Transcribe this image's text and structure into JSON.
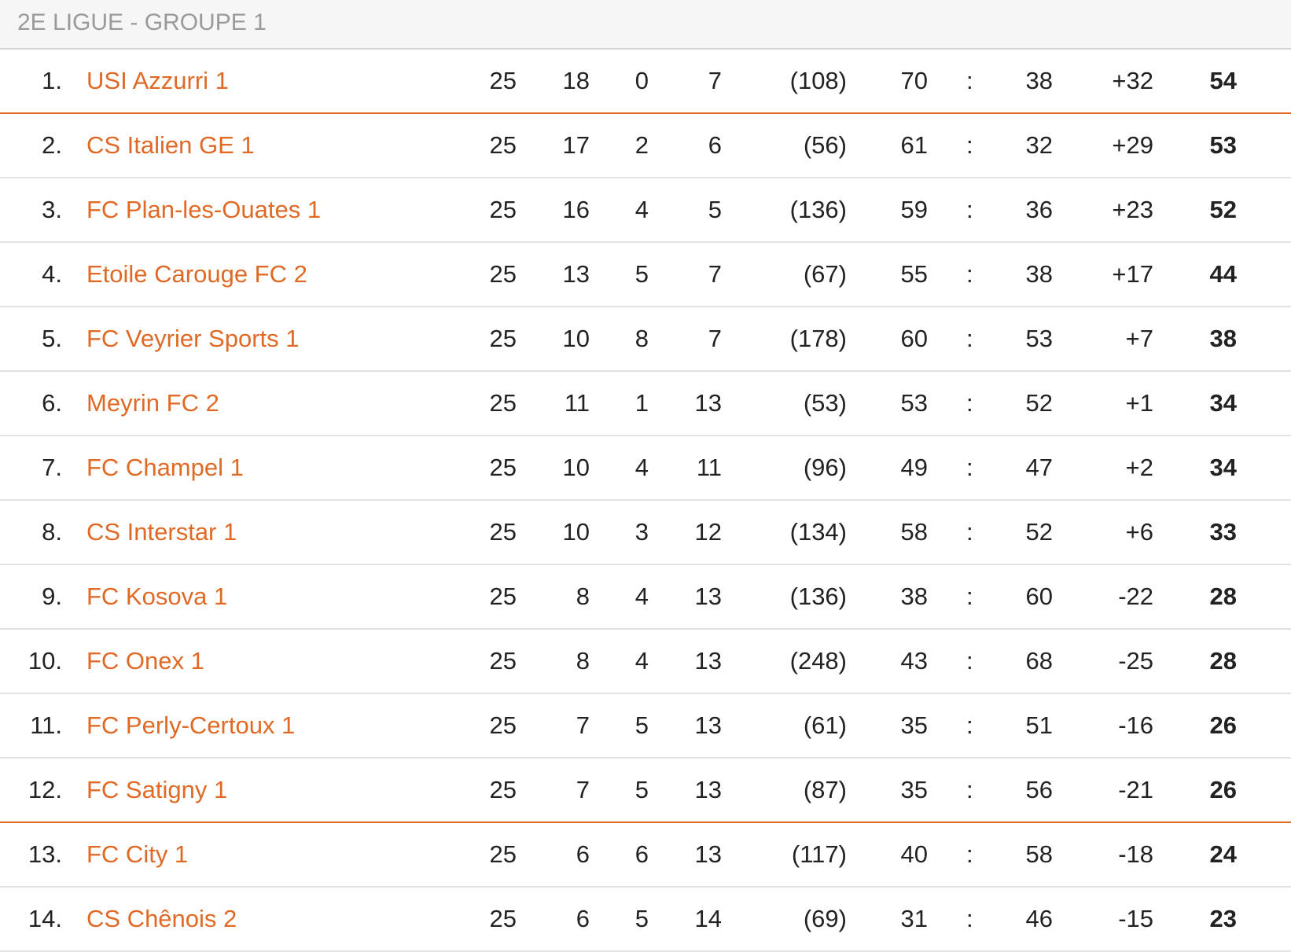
{
  "title": "2E LIGUE - GROUPE 1",
  "colors": {
    "accent": "#e06a25",
    "header_text": "#9a9a9a"
  },
  "rows": [
    {
      "rank": "1.",
      "team": "USI Azzurri 1",
      "played": "25",
      "won": "18",
      "drawn": "0",
      "lost": "7",
      "extra": "(108)",
      "gf": "70",
      "sep": ":",
      "ga": "38",
      "diff": "+32",
      "pts": "54"
    },
    {
      "rank": "2.",
      "team": "CS Italien GE 1",
      "played": "25",
      "won": "17",
      "drawn": "2",
      "lost": "6",
      "extra": "(56)",
      "gf": "61",
      "sep": ":",
      "ga": "32",
      "diff": "+29",
      "pts": "53"
    },
    {
      "rank": "3.",
      "team": "FC Plan-les-Ouates 1",
      "played": "25",
      "won": "16",
      "drawn": "4",
      "lost": "5",
      "extra": "(136)",
      "gf": "59",
      "sep": ":",
      "ga": "36",
      "diff": "+23",
      "pts": "52"
    },
    {
      "rank": "4.",
      "team": "Etoile Carouge FC 2",
      "played": "25",
      "won": "13",
      "drawn": "5",
      "lost": "7",
      "extra": "(67)",
      "gf": "55",
      "sep": ":",
      "ga": "38",
      "diff": "+17",
      "pts": "44"
    },
    {
      "rank": "5.",
      "team": "FC Veyrier Sports 1",
      "played": "25",
      "won": "10",
      "drawn": "8",
      "lost": "7",
      "extra": "(178)",
      "gf": "60",
      "sep": ":",
      "ga": "53",
      "diff": "+7",
      "pts": "38"
    },
    {
      "rank": "6.",
      "team": "Meyrin FC 2",
      "played": "25",
      "won": "11",
      "drawn": "1",
      "lost": "13",
      "extra": "(53)",
      "gf": "53",
      "sep": ":",
      "ga": "52",
      "diff": "+1",
      "pts": "34"
    },
    {
      "rank": "7.",
      "team": "FC Champel 1",
      "played": "25",
      "won": "10",
      "drawn": "4",
      "lost": "11",
      "extra": "(96)",
      "gf": "49",
      "sep": ":",
      "ga": "47",
      "diff": "+2",
      "pts": "34"
    },
    {
      "rank": "8.",
      "team": "CS Interstar 1",
      "played": "25",
      "won": "10",
      "drawn": "3",
      "lost": "12",
      "extra": "(134)",
      "gf": "58",
      "sep": ":",
      "ga": "52",
      "diff": "+6",
      "pts": "33"
    },
    {
      "rank": "9.",
      "team": "FC Kosova 1",
      "played": "25",
      "won": "8",
      "drawn": "4",
      "lost": "13",
      "extra": "(136)",
      "gf": "38",
      "sep": ":",
      "ga": "60",
      "diff": "-22",
      "pts": "28"
    },
    {
      "rank": "10.",
      "team": "FC Onex 1",
      "played": "25",
      "won": "8",
      "drawn": "4",
      "lost": "13",
      "extra": "(248)",
      "gf": "43",
      "sep": ":",
      "ga": "68",
      "diff": "-25",
      "pts": "28"
    },
    {
      "rank": "11.",
      "team": "FC Perly-Certoux 1",
      "played": "25",
      "won": "7",
      "drawn": "5",
      "lost": "13",
      "extra": "(61)",
      "gf": "35",
      "sep": ":",
      "ga": "51",
      "diff": "-16",
      "pts": "26"
    },
    {
      "rank": "12.",
      "team": "FC Satigny 1",
      "played": "25",
      "won": "7",
      "drawn": "5",
      "lost": "13",
      "extra": "(87)",
      "gf": "35",
      "sep": ":",
      "ga": "56",
      "diff": "-21",
      "pts": "26"
    },
    {
      "rank": "13.",
      "team": "FC City 1",
      "played": "25",
      "won": "6",
      "drawn": "6",
      "lost": "13",
      "extra": "(117)",
      "gf": "40",
      "sep": ":",
      "ga": "58",
      "diff": "-18",
      "pts": "24"
    },
    {
      "rank": "14.",
      "team": "CS Chênois 2",
      "played": "25",
      "won": "6",
      "drawn": "5",
      "lost": "14",
      "extra": "(69)",
      "gf": "31",
      "sep": ":",
      "ga": "46",
      "diff": "-15",
      "pts": "23"
    }
  ]
}
